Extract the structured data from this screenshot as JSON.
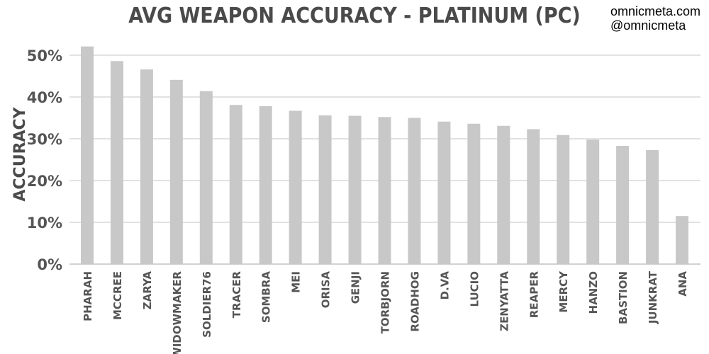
{
  "credits": {
    "site": "omnicmeta.com",
    "handle": "@omnicmeta"
  },
  "colors": {
    "bar": "#c8c8c8",
    "grid": "#c4c4c4",
    "text": "#555555",
    "title": "#4a4a4a"
  },
  "chart_data": {
    "type": "bar",
    "title": "AVG WEAPON ACCURACY - PLATINUM (PC)",
    "xlabel": "",
    "ylabel": "ACCURACY",
    "ylim": [
      0,
      50
    ],
    "yticks": [
      0,
      10,
      20,
      30,
      40,
      50
    ],
    "ytick_labels": [
      "0%",
      "10%",
      "20%",
      "30%",
      "40%",
      "50%"
    ],
    "grid": true,
    "categories": [
      "PHARAH",
      "MCCREE",
      "ZARYA",
      "WIDOWMAKER",
      "SOLDIER76",
      "TRACER",
      "SOMBRA",
      "MEI",
      "ORISA",
      "GENJI",
      "TORBJORN",
      "ROADHOG",
      "D.VA",
      "LUCIO",
      "ZENYATTA",
      "REAPER",
      "MERCY",
      "HANZO",
      "BASTION",
      "JUNKRAT",
      "ANA"
    ],
    "values": [
      52.1,
      48.6,
      46.6,
      44.1,
      41.4,
      38.1,
      37.8,
      36.7,
      35.6,
      35.5,
      35.2,
      35.0,
      34.1,
      33.6,
      33.1,
      32.3,
      30.9,
      29.8,
      28.3,
      27.3,
      11.5
    ]
  }
}
